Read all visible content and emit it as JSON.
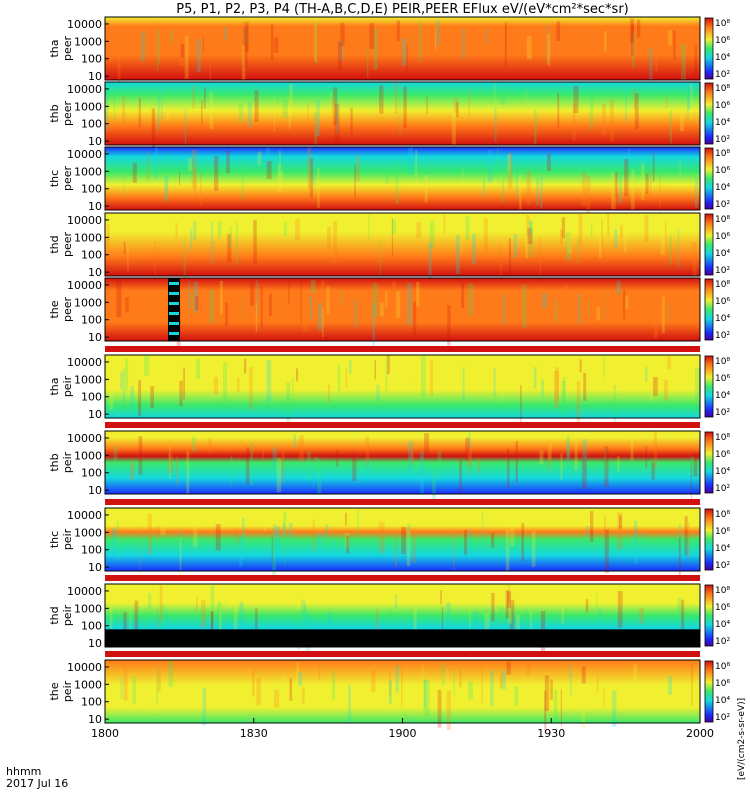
{
  "title": "P5, P1, P2, P3, P4 (TH-A,B,C,D,E) PEIR,PEER EFlux eV/(eV*cm²*sec*sr)",
  "time_axis": {
    "ticks": [
      "1800",
      "1830",
      "1900",
      "1930",
      "2000"
    ],
    "label_line1": "hhmm",
    "label_line2": "2017 Jul 16"
  },
  "colorbar_label": "[eV/(cm2-s-sr-eV)]",
  "chart_data": {
    "type": "heatmap",
    "x_range": [
      "1800",
      "2000"
    ],
    "y_scale": "log",
    "y_ticks": [
      "10",
      "100",
      "1000",
      "10000"
    ],
    "colorbar_ticks": [
      "10²",
      "10⁴",
      "10⁶",
      "10⁸"
    ],
    "colors": {
      "low": "#1a2bff",
      "mid_low": "#14d8e0",
      "mid": "#39e86a",
      "mid_high": "#f0f030",
      "high": "#ff7a18",
      "max": "#d21010",
      "fill": "#000000"
    },
    "panels": [
      {
        "label1": "tha",
        "label2": "peer"
      },
      {
        "label1": "thb",
        "label2": "peer"
      },
      {
        "label1": "thc",
        "label2": "peer"
      },
      {
        "label1": "thd",
        "label2": "peer"
      },
      {
        "label1": "the",
        "label2": "peer"
      },
      {
        "label1": "tha",
        "label2": "peir"
      },
      {
        "label1": "thb",
        "label2": "peir"
      },
      {
        "label1": "thc",
        "label2": "peir"
      },
      {
        "label1": "thd",
        "label2": "peir"
      },
      {
        "label1": "the",
        "label2": "peir"
      }
    ]
  }
}
